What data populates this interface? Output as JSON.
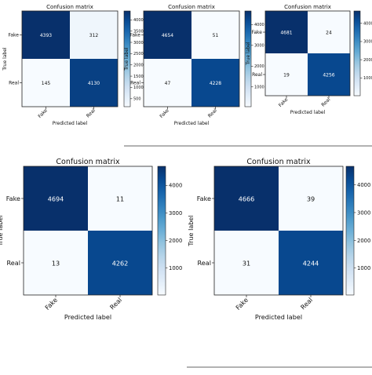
{
  "chart_data": [
    {
      "type": "heatmap",
      "title": "Confusion matrix",
      "xlabel": "Predicted label",
      "ylabel": "True label",
      "x_categories": [
        "Fake",
        "Real"
      ],
      "y_categories": [
        "Fake",
        "Real"
      ],
      "values": [
        [
          4393,
          312
        ],
        [
          145,
          4130
        ]
      ],
      "colorbar_ticks": [
        500,
        1000,
        1500,
        2000,
        2500,
        3000,
        3500,
        4000
      ],
      "colormap": "Blues",
      "vmin": 145,
      "vmax": 4393
    },
    {
      "type": "heatmap",
      "title": "Confusion matrix",
      "xlabel": "Predicted label",
      "ylabel": "True label",
      "x_categories": [
        "Fake",
        "Real"
      ],
      "y_categories": [
        "Fake",
        "Real"
      ],
      "values": [
        [
          4654,
          51
        ],
        [
          47,
          4228
        ]
      ],
      "colorbar_ticks": [
        1000,
        2000,
        3000,
        4000
      ],
      "colormap": "Blues",
      "vmin": 47,
      "vmax": 4654
    },
    {
      "type": "heatmap",
      "title": "Confusion matrix",
      "xlabel": "Predicted label",
      "ylabel": "True label",
      "x_categories": [
        "Fake",
        "Real"
      ],
      "y_categories": [
        "Fake",
        "Real"
      ],
      "values": [
        [
          4681,
          24
        ],
        [
          19,
          4256
        ]
      ],
      "colorbar_ticks": [
        1000,
        2000,
        3000,
        4000
      ],
      "colormap": "Blues",
      "vmin": 19,
      "vmax": 4681
    },
    {
      "type": "heatmap",
      "title": "Confusion matrix",
      "xlabel": "Predicted label",
      "ylabel": "True label",
      "x_categories": [
        "Fake",
        "Real"
      ],
      "y_categories": [
        "Fake",
        "Real"
      ],
      "values": [
        [
          4694,
          11
        ],
        [
          13,
          4262
        ]
      ],
      "colorbar_ticks": [
        1000,
        2000,
        3000,
        4000
      ],
      "colormap": "Blues",
      "vmin": 11,
      "vmax": 4694
    },
    {
      "type": "heatmap",
      "title": "Confusion matrix",
      "xlabel": "Predicted label",
      "ylabel": "True label",
      "x_categories": [
        "Fake",
        "Real"
      ],
      "y_categories": [
        "Fake",
        "Real"
      ],
      "values": [
        [
          4666,
          39
        ],
        [
          31,
          4244
        ]
      ],
      "colorbar_ticks": [
        1000,
        2000,
        3000,
        4000
      ],
      "colormap": "Blues",
      "vmin": 31,
      "vmax": 4666
    }
  ]
}
